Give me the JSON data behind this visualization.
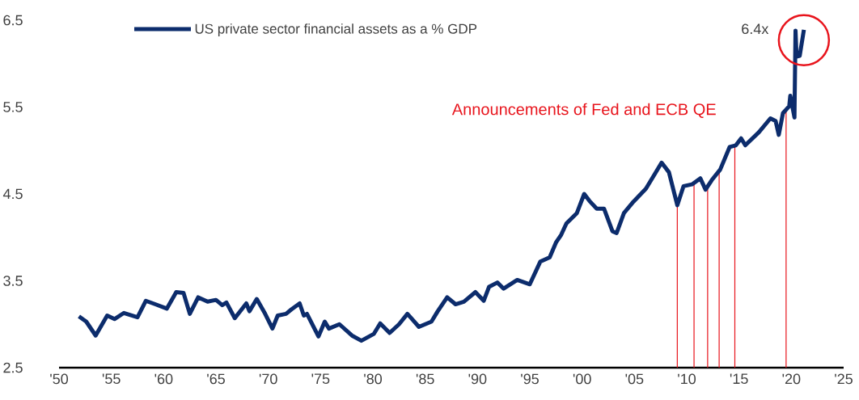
{
  "chart_data": {
    "type": "line",
    "x": [
      1951.9,
      1952.6,
      1953.5,
      1954.6,
      1955.3,
      1956.2,
      1957.5,
      1958.3,
      1959.2,
      1960.3,
      1961.2,
      1961.9,
      1962.5,
      1963.3,
      1964.2,
      1965.0,
      1965.6,
      1966.0,
      1966.8,
      1967.9,
      1968.2,
      1968.9,
      1969.7,
      1970.4,
      1970.9,
      1971.7,
      1972.2,
      1973.0,
      1973.4,
      1973.7,
      1974.8,
      1975.4,
      1975.8,
      1976.8,
      1978.0,
      1978.9,
      1980.1,
      1980.7,
      1981.6,
      1982.5,
      1983.3,
      1984.4,
      1985.6,
      1986.2,
      1987.1,
      1987.9,
      1988.7,
      1989.8,
      1990.6,
      1991.1,
      1991.9,
      1992.5,
      1993.8,
      1995.0,
      1996.0,
      1996.9,
      1997.5,
      1998.0,
      1998.5,
      1999.5,
      2000.2,
      2000.7,
      2001.4,
      2002.1,
      2002.9,
      2003.3,
      2004.0,
      2004.9,
      2006.1,
      2006.8,
      2007.6,
      2008.3,
      2009.1,
      2009.7,
      2010.5,
      2011.3,
      2011.8,
      2012.4,
      2013.2,
      2014.1,
      2014.7,
      2015.2,
      2015.6,
      2016.9,
      2018.0,
      2018.5,
      2018.8,
      2019.2,
      2019.8,
      2019.9,
      2020.3,
      2020.4,
      2020.5,
      2020.8,
      2021.2
    ],
    "series": [
      {
        "name": "US private sector financial assets as a % GDP",
        "color": "#0c2c6c",
        "values": [
          3.09,
          3.03,
          2.87,
          3.1,
          3.06,
          3.13,
          3.08,
          3.27,
          3.23,
          3.18,
          3.37,
          3.36,
          3.12,
          3.31,
          3.26,
          3.28,
          3.22,
          3.25,
          3.07,
          3.24,
          3.15,
          3.29,
          3.12,
          2.95,
          3.1,
          3.12,
          3.17,
          3.24,
          3.1,
          3.12,
          2.86,
          3.03,
          2.95,
          3.0,
          2.87,
          2.81,
          2.89,
          3.01,
          2.9,
          3.0,
          3.12,
          2.97,
          3.03,
          3.15,
          3.31,
          3.23,
          3.26,
          3.37,
          3.27,
          3.43,
          3.48,
          3.41,
          3.51,
          3.46,
          3.72,
          3.77,
          3.94,
          4.03,
          4.16,
          4.28,
          4.5,
          4.42,
          4.33,
          4.33,
          4.07,
          4.05,
          4.28,
          4.41,
          4.56,
          4.7,
          4.86,
          4.75,
          4.37,
          4.59,
          4.61,
          4.68,
          4.55,
          4.66,
          4.78,
          5.04,
          5.06,
          5.14,
          5.06,
          5.21,
          5.37,
          5.34,
          5.18,
          5.43,
          5.51,
          5.63,
          5.38,
          6.38,
          6.08,
          6.09,
          6.39
        ]
      }
    ],
    "xlim": [
      1950,
      2025
    ],
    "xticks": [
      {
        "value": 1950,
        "label": "'50"
      },
      {
        "value": 1955,
        "label": "'55"
      },
      {
        "value": 1960,
        "label": "'60"
      },
      {
        "value": 1965,
        "label": "'65"
      },
      {
        "value": 1970,
        "label": "'70"
      },
      {
        "value": 1975,
        "label": "'75"
      },
      {
        "value": 1980,
        "label": "'80"
      },
      {
        "value": 1985,
        "label": "'85"
      },
      {
        "value": 1990,
        "label": "'90"
      },
      {
        "value": 1995,
        "label": "'95"
      },
      {
        "value": 2000,
        "label": "'00"
      },
      {
        "value": 2005,
        "label": "'05"
      },
      {
        "value": 2010,
        "label": "'10"
      },
      {
        "value": 2015,
        "label": "'15"
      },
      {
        "value": 2020,
        "label": "'20"
      },
      {
        "value": 2025,
        "label": "'25"
      }
    ],
    "ylim": [
      2.5,
      6.5
    ],
    "yticks": [
      2.5,
      3.5,
      4.5,
      5.5,
      6.5
    ],
    "grid": false,
    "legend": "top left",
    "ref_lines": [
      {
        "axis": "x",
        "value": 2009.1,
        "color": "#e8141c"
      },
      {
        "axis": "x",
        "value": 2010.7,
        "color": "#e8141c"
      },
      {
        "axis": "x",
        "value": 2012.0,
        "color": "#e8141c"
      },
      {
        "axis": "x",
        "value": 2013.1,
        "color": "#e8141c"
      },
      {
        "axis": "x",
        "value": 2014.6,
        "color": "#e8141c"
      },
      {
        "axis": "x",
        "value": 2019.5,
        "color": "#e8141c"
      }
    ],
    "annotations": [
      "Announcements of Fed and ECB QE",
      {
        "text": "6.4x",
        "x": 2021.2,
        "y": 6.4
      }
    ]
  }
}
